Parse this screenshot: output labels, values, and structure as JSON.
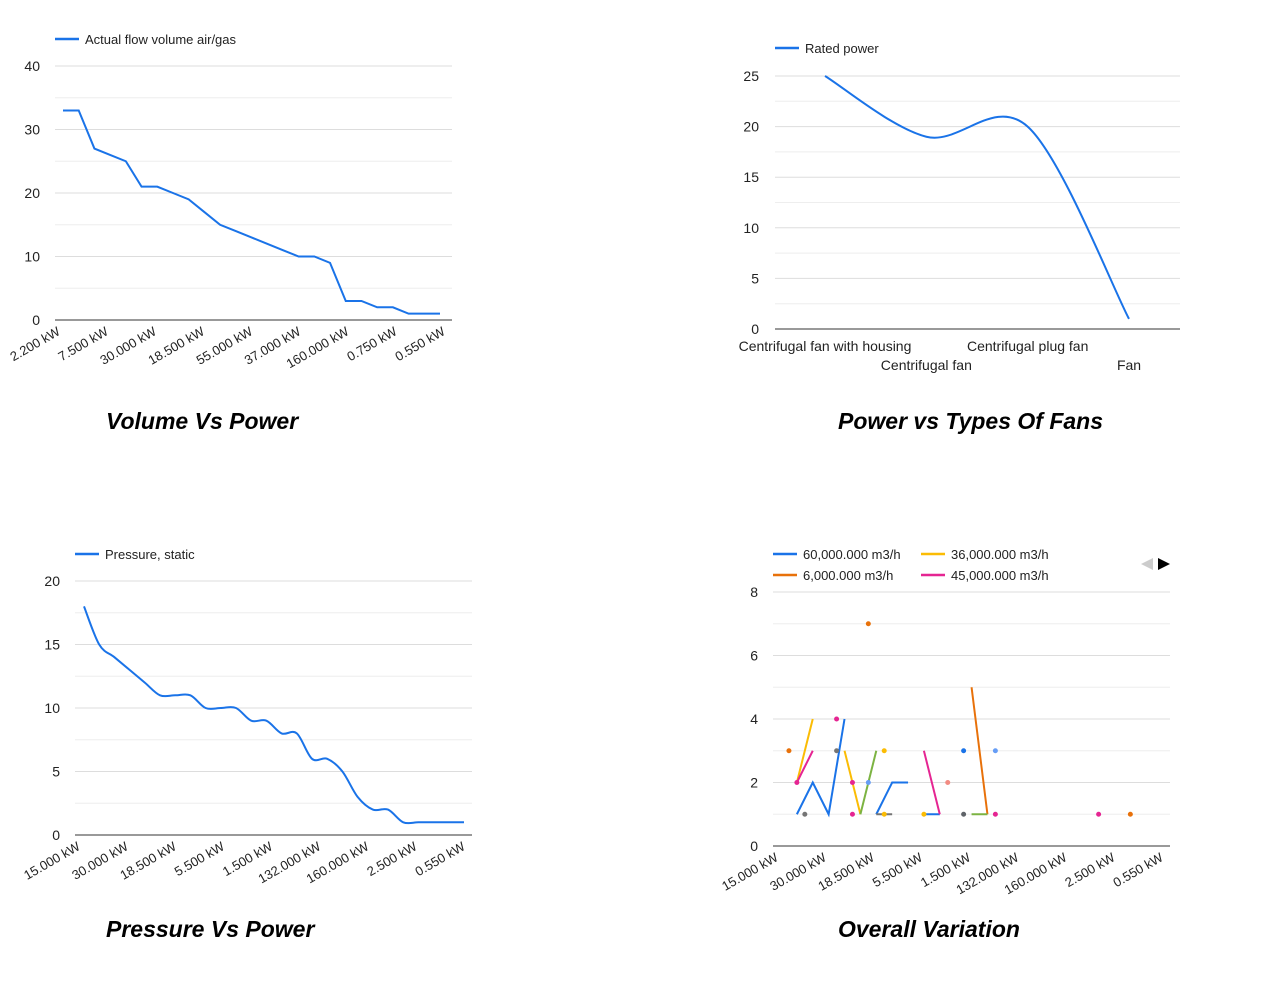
{
  "colors": {
    "primary_line": "#1a73e8",
    "grid": "#dddddd",
    "axis": "#333333",
    "series": [
      "#1a73e8",
      "#fbbc04",
      "#e8710a",
      "#e52592"
    ],
    "scatter_points": [
      "#e8710a",
      "#fbbc04",
      "#1a73e8",
      "#e52592",
      "#757575",
      "#7cb342",
      "#669df6",
      "#f28b82",
      "#5f6368"
    ]
  },
  "chart_data": [
    {
      "type": "line",
      "title": "Volume Vs Power",
      "legend": [
        "Actual flow volume air/gas"
      ],
      "legend_position": "top-left",
      "x_tick_labels": [
        "2.200 kW",
        "7.500 kW",
        "30.000 kW",
        "18.500 kW",
        "55.000 kW",
        "37.000 kW",
        "160.000 kW",
        "0.750 kW",
        "0.550 kW"
      ],
      "y_ticks": [
        0,
        10,
        20,
        30,
        40
      ],
      "ylim": [
        0,
        40
      ],
      "grid": true,
      "series": [
        {
          "name": "Actual flow volume air/gas",
          "values": [
            33,
            33,
            27,
            26,
            25,
            21,
            21,
            20,
            19,
            17,
            15,
            14,
            13,
            12,
            11,
            10,
            10,
            9,
            3,
            3,
            2,
            2,
            1,
            1,
            1
          ]
        }
      ]
    },
    {
      "type": "line",
      "title": "Power vs Types Of Fans",
      "legend": [
        "Rated power"
      ],
      "legend_position": "top-left",
      "categories": [
        "Centrifugal fan with housing",
        "Centrifugal fan",
        "Centrifugal plug fan",
        "Fan"
      ],
      "y_ticks": [
        0,
        5,
        10,
        15,
        20,
        25
      ],
      "ylim": [
        0,
        25
      ],
      "grid": true,
      "series": [
        {
          "name": "Rated power",
          "values": [
            25,
            19,
            20,
            1
          ]
        }
      ]
    },
    {
      "type": "line",
      "title": "Pressure Vs Power",
      "legend": [
        "Pressure, static"
      ],
      "legend_position": "top-left",
      "x_tick_labels": [
        "15.000 kW",
        "30.000 kW",
        "18.500 kW",
        "5.500 kW",
        "1.500 kW",
        "132.000 kW",
        "160.000 kW",
        "2.500 kW",
        "0.550 kW"
      ],
      "y_ticks": [
        0,
        5,
        10,
        15,
        20
      ],
      "ylim": [
        0,
        20
      ],
      "grid": true,
      "series": [
        {
          "name": "Pressure, static",
          "values": [
            18,
            15,
            14,
            13,
            12,
            11,
            11,
            11,
            10,
            10,
            10,
            9,
            9,
            8,
            8,
            6,
            6,
            5,
            3,
            2,
            2,
            1,
            1,
            1,
            1,
            1
          ]
        }
      ]
    },
    {
      "type": "line",
      "title": "Overall Variation",
      "legend": [
        "60,000.000 m3/h",
        "36,000.000 m3/h",
        "6,000.000 m3/h",
        "45,000.000 m3/h"
      ],
      "legend_position": "top-left",
      "legend_paged": true,
      "x_tick_labels": [
        "15.000 kW",
        "30.000 kW",
        "18.500 kW",
        "5.500 kW",
        "1.500 kW",
        "132.000 kW",
        "160.000 kW",
        "2.500 kW",
        "0.550 kW"
      ],
      "y_ticks": [
        0,
        2,
        4,
        6,
        8
      ],
      "ylim": [
        0,
        8
      ],
      "grid": true,
      "segments": [
        {
          "series": 0,
          "points": [
            [
              1,
              1
            ],
            [
              2,
              2
            ],
            [
              3,
              1
            ],
            [
              4,
              4
            ]
          ]
        },
        {
          "series": 0,
          "points": [
            [
              6,
              1
            ],
            [
              7,
              2
            ],
            [
              8,
              2
            ]
          ]
        },
        {
          "series": 0,
          "points": [
            [
              9,
              1
            ],
            [
              10,
              1
            ]
          ]
        },
        {
          "series": 1,
          "points": [
            [
              1,
              2
            ],
            [
              2,
              4
            ]
          ]
        },
        {
          "series": 1,
          "points": [
            [
              4,
              3
            ],
            [
              5,
              1
            ]
          ]
        },
        {
          "series": 2,
          "points": [
            [
              12,
              5
            ],
            [
              13,
              1
            ]
          ]
        },
        {
          "series": 3,
          "points": [
            [
              1,
              2
            ],
            [
              2,
              3
            ]
          ]
        },
        {
          "series": 3,
          "points": [
            [
              9,
              3
            ],
            [
              10,
              1
            ]
          ]
        },
        {
          "series": 5,
          "points": [
            [
              5,
              1
            ],
            [
              6,
              3
            ]
          ]
        },
        {
          "series": 5,
          "points": [
            [
              12,
              1
            ],
            [
              13,
              1
            ]
          ]
        },
        {
          "series": 4,
          "points": [
            [
              6,
              1
            ],
            [
              7,
              1
            ]
          ]
        }
      ],
      "points": [
        {
          "x": 0.5,
          "y": 3,
          "c": 0
        },
        {
          "x": 1,
          "y": 2,
          "c": 3
        },
        {
          "x": 1.5,
          "y": 1,
          "c": 4
        },
        {
          "x": 3.5,
          "y": 4,
          "c": 3
        },
        {
          "x": 3.5,
          "y": 3,
          "c": 4
        },
        {
          "x": 4.5,
          "y": 2,
          "c": 3
        },
        {
          "x": 4.5,
          "y": 1,
          "c": 3
        },
        {
          "x": 5.5,
          "y": 7,
          "c": 0
        },
        {
          "x": 5.5,
          "y": 2,
          "c": 6
        },
        {
          "x": 6.5,
          "y": 3,
          "c": 1
        },
        {
          "x": 6.5,
          "y": 1,
          "c": 1
        },
        {
          "x": 9,
          "y": 1,
          "c": 1
        },
        {
          "x": 10.5,
          "y": 2,
          "c": 7
        },
        {
          "x": 11.5,
          "y": 3,
          "c": 2
        },
        {
          "x": 11.5,
          "y": 1,
          "c": 8
        },
        {
          "x": 13.5,
          "y": 3,
          "c": 6
        },
        {
          "x": 13.5,
          "y": 1,
          "c": 3
        },
        {
          "x": 20,
          "y": 1,
          "c": 3
        },
        {
          "x": 22,
          "y": 1,
          "c": 0
        }
      ],
      "x_points_count": 25
    }
  ]
}
